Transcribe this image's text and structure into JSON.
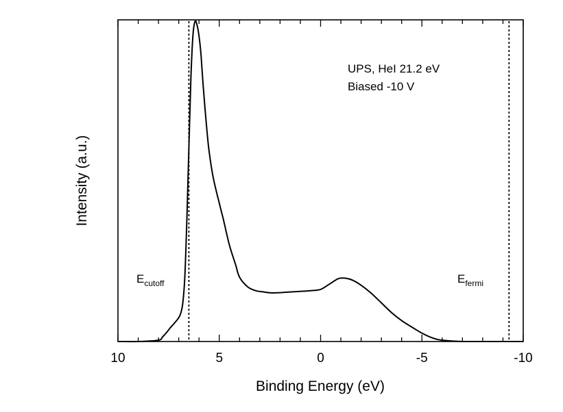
{
  "chart_data": {
    "type": "line",
    "xlabel": "Binding Energy (eV)",
    "ylabel": "Intensity (a.u.)",
    "xlim": [
      10,
      -10
    ],
    "x_reversed": true,
    "ylim": [
      0,
      1.0
    ],
    "xticks": [
      10,
      5,
      0,
      -5,
      -10
    ],
    "xtick_labels": [
      "10",
      "5",
      "0",
      "-5",
      "-10"
    ],
    "y_tick_labels_shown": false,
    "grid": false,
    "annotations": {
      "line1": "UPS, HeI 21.2 eV",
      "line2": "Biased -10 V",
      "cutoff_main": "E",
      "cutoff_sub": "cutoff",
      "fermi_main": "E",
      "fermi_sub": "fermi"
    },
    "reference_lines": [
      {
        "x": 6.5,
        "style": "dotted"
      },
      {
        "x": -9.3,
        "style": "dotted"
      }
    ],
    "series": [
      {
        "x": [
          10.0,
          9.0,
          8.0,
          7.8,
          7.6,
          7.4,
          7.2,
          7.0,
          6.9,
          6.8,
          6.7,
          6.6,
          6.5,
          6.4,
          6.3,
          6.2,
          6.1,
          6.0,
          5.9,
          5.8,
          5.7,
          5.6,
          5.5,
          5.3,
          5.0,
          4.8,
          4.5,
          4.2,
          4.0,
          3.6,
          3.2,
          2.8,
          2.4,
          2.0,
          1.5,
          1.0,
          0.5,
          0.0,
          -0.4,
          -0.8,
          -1.0,
          -1.3,
          -1.6,
          -2.0,
          -2.5,
          -3.0,
          -3.5,
          -4.0,
          -4.5,
          -5.0,
          -5.4,
          -5.8,
          -6.2,
          -6.6,
          -7.0,
          -8.0,
          -9.0,
          -10.0
        ],
        "y": [
          0.0,
          0.0,
          0.004,
          0.014,
          0.028,
          0.044,
          0.058,
          0.074,
          0.088,
          0.12,
          0.2,
          0.38,
          0.6,
          0.82,
          0.95,
          0.995,
          0.985,
          0.95,
          0.89,
          0.8,
          0.72,
          0.65,
          0.59,
          0.51,
          0.43,
          0.38,
          0.3,
          0.24,
          0.2,
          0.17,
          0.158,
          0.154,
          0.151,
          0.152,
          0.154,
          0.156,
          0.158,
          0.162,
          0.177,
          0.193,
          0.197,
          0.196,
          0.19,
          0.175,
          0.15,
          0.12,
          0.09,
          0.065,
          0.045,
          0.026,
          0.014,
          0.006,
          0.003,
          0.001,
          0.0,
          0.0,
          0.0,
          0.0
        ]
      }
    ]
  }
}
